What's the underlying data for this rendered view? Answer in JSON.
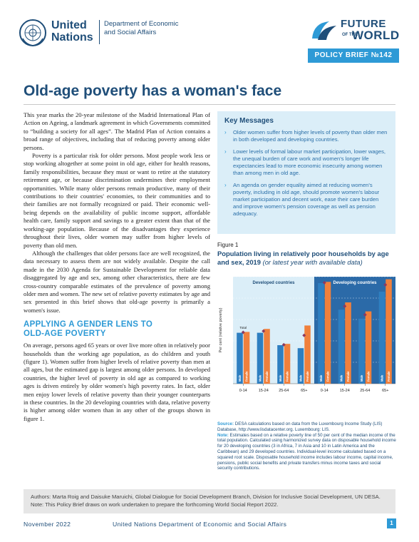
{
  "header": {
    "org_name": "United Nations",
    "dept_name": "Department of Economic and Social Affairs",
    "fow_line1": "FUTURE",
    "fow_of": "OF THE",
    "fow_line2": "WORLD",
    "badge": "POLICY BRIEF №142"
  },
  "title": "Old-age poverty has a woman's face",
  "body": {
    "p1": "This year marks the 20-year milestone of the Madrid International Plan of Action on Ageing, a landmark agreement in which Governments committed to “building a society for all ages”. The Madrid Plan of Action contains a broad range of objectives, including that of reducing poverty among older persons.",
    "p2": "Poverty is a particular risk for older persons. Most people work less or stop working altogether at some point in old age, either for health reasons, family responsibilities, because they must or want to retire at the statutory retirement age, or because discrimination undermines their employment opportunities. While many older persons remain productive, many of their contributions to their countries' economies, to their communities and to their families are not formally recognized or paid. Their economic well-being depends on the availability of public income support, affordable health care, family support and savings to a greater extent than that of the working-age population. Because of the disadvantages they experience throughout their lives, older women may suffer from higher levels of poverty than old men.",
    "p3": "Although the challenges that older persons face are well recognized, the data necessary to assess them are not widely available. Despite the call made in the 2030 Agenda for Sustainable Development for reliable data disaggregated by age and sex, among other characteristics, there are few cross-country comparable estimates of the prevalence of poverty among older men and women. The new set of relative poverty estimates by age and sex presented in this brief shows that old-age poverty is primarily a women's issue.",
    "section_heading_1": "APPLYING A GENDER LENS TO",
    "section_heading_2": "OLD-AGE POVERTY",
    "p4": "On average, persons aged 65 years or over live more often in relatively poor households than the working age population, as do children and youth (figure 1). Women suffer from higher levels of relative poverty than men at all ages, but the estimated gap is largest among older persons. In developed countries, the higher level of poverty in old age as compared to working ages is driven entirely by older women's high poverty rates. In fact, older men enjoy lower levels of relative poverty than their younger counterparts in these countries. In the 20 developing countries with data, relative poverty is higher among older women than in any other of the groups shown in figure 1."
  },
  "key_messages": {
    "title": "Key Messages",
    "items": [
      "Older women suffer from higher levels of poverty than older men in both developed and developing countries.",
      "Lower levels of formal labour market participation, lower wages, the unequal burden of care work and women's longer life expectancies lead to more economic insecurity among women than among men in old age.",
      "An agenda on gender equality aimed at reducing women's poverty, including in old age, should promote women's labour market participation and decent work, ease their care burden and improve women's pension coverage as well as pension adequacy."
    ]
  },
  "figure": {
    "label": "Figure 1",
    "title": "Population living in relatively poor households by age and sex, 2019",
    "title_note": "(or latest year with available data)"
  },
  "chart_data": {
    "type": "bar",
    "ylabel": "Per cent (relative poverty)",
    "ylim": [
      0,
      25
    ],
    "colors": {
      "male": "#2e7fc1",
      "female": "#f0803c",
      "total": "#8b3a62",
      "dev_bg": "#dbeef8",
      "deving_bg": "#2b6aa8"
    },
    "groups": [
      {
        "name": "Developed countries",
        "categories": [
          "0-14",
          "15-24",
          "25-64",
          "65+"
        ],
        "male": [
          11.9,
          11.9,
          9.0,
          8.3
        ],
        "female": [
          12.1,
          12.8,
          9.3,
          13.6
        ],
        "total": [
          12.0,
          12.3,
          9.1,
          11.3
        ]
      },
      {
        "name": "Developing countries",
        "categories": [
          "0-14",
          "15-24",
          "25-64",
          "65+"
        ],
        "male": [
          23.5,
          17.3,
          15.2,
          21.5
        ],
        "female": [
          23.8,
          19.0,
          16.9,
          24.4
        ],
        "total": [
          23.6,
          18.1,
          16.1,
          23.1
        ]
      }
    ],
    "bar_labels": {
      "male": "Male",
      "female": "Female",
      "total": "Total"
    }
  },
  "notes": {
    "source_label": "Source:",
    "source": "DESA calculations based on data from the Luxembourg Income Study (LIS) Database, http://www.lisdatacenter.org. Luxembourg: LIS.",
    "note_label": "Note:",
    "note": "Estimates based on a relative poverty line of 50 per cent of the median income of the total population. Calculated using harmonized survey data on disposable household income for 20 developing countries (3 in Africa, 7 in Asia and 10 in Latin America and the Caribbean) and 29 developed countries. Individual-level income calculated based on a squared root scale. Disposable household income includes labour income, capital income, pensions, public social benefits and private transfers minus income taxes and social security contributions."
  },
  "authors": {
    "line1": "Authors: Marta Roig and Daisuke Maruichi, Global Dialogue for Social Development Branch, Division for Inclusive Social Development, UN DESA.",
    "line2": "Note: This Policy Brief draws on work undertaken to prepare the forthcoming World Social Report 2022."
  },
  "footer": {
    "date": "November 2022",
    "org": "United Nations Department of Economic and Social Affairs",
    "page": "1"
  }
}
